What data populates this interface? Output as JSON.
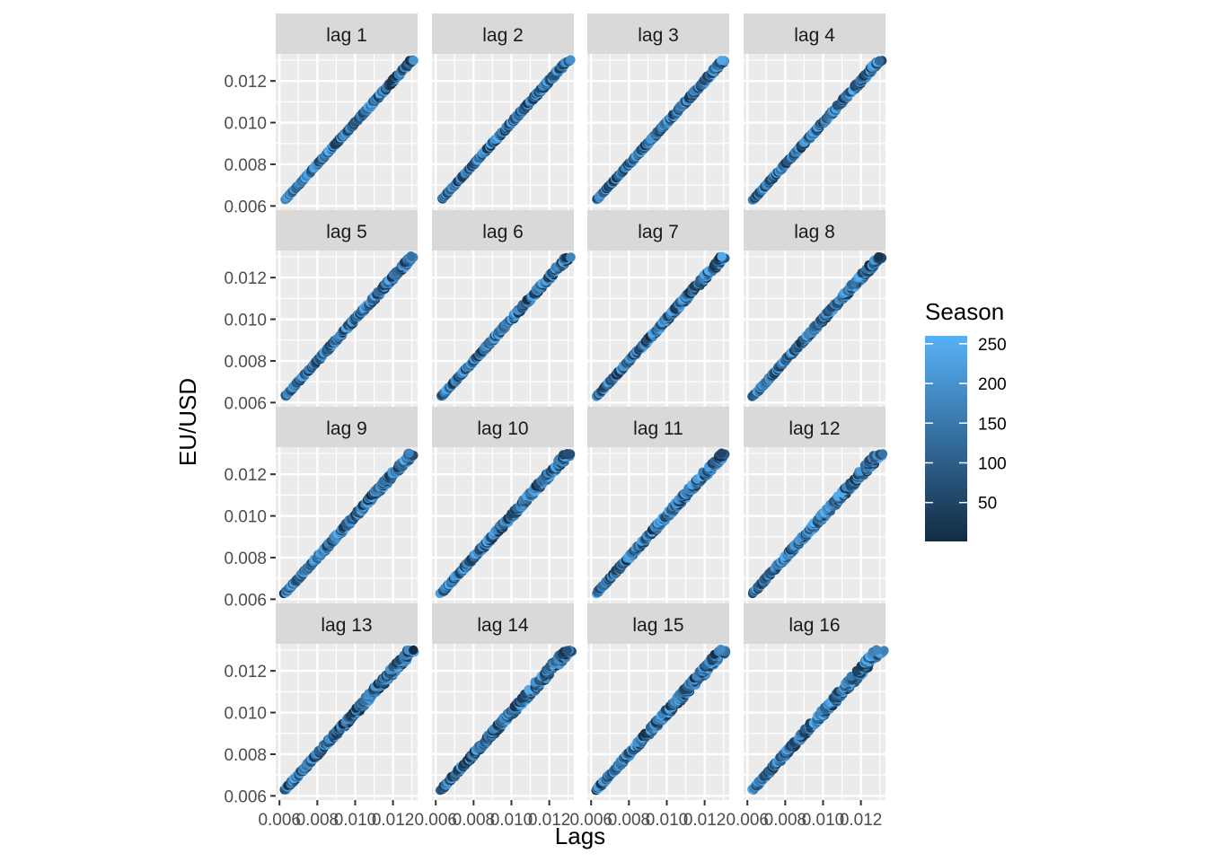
{
  "chart_data": {
    "type": "scatter",
    "facets": [
      "lag 1",
      "lag 2",
      "lag 3",
      "lag 4",
      "lag 5",
      "lag 6",
      "lag 7",
      "lag 8",
      "lag 9",
      "lag 10",
      "lag 11",
      "lag 12",
      "lag 13",
      "lag 14",
      "lag 15",
      "lag 16"
    ],
    "ncol": 4,
    "xlabel": "Lags",
    "ylabel": "EU/USD",
    "xlim": [
      0.0058,
      0.0133
    ],
    "ylim": [
      0.0058,
      0.0133
    ],
    "x_ticks": [
      0.006,
      0.008,
      0.01,
      0.012
    ],
    "x_tick_labels": [
      "0.006",
      "0.008",
      "0.010",
      "0.012"
    ],
    "y_ticks": [
      0.006,
      0.008,
      0.01,
      0.012
    ],
    "y_tick_labels": [
      "0.006",
      "0.008",
      "0.010",
      "0.012"
    ],
    "legend": {
      "title": "Season",
      "position": "right",
      "range": [
        1,
        260
      ],
      "breaks": [
        250,
        200,
        150,
        100,
        50
      ],
      "low_color": "#132B43",
      "high_color": "#56B1F7"
    },
    "series_description_points": {
      "range_min": 0.0063,
      "range_max": 0.013,
      "samples": 300
    },
    "grid": true,
    "panel_background": "#EBEBEB",
    "strip_background": "#D9D9D9"
  }
}
